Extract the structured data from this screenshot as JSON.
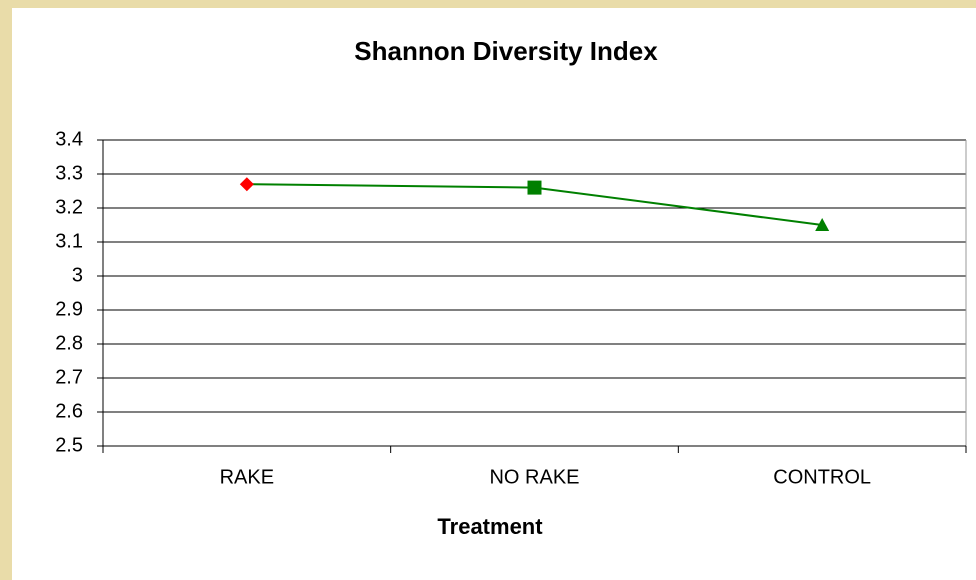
{
  "chart_data": {
    "type": "line",
    "title": "Shannon Diversity Index",
    "x_label": "Treatment",
    "categories": [
      "RAKE",
      "NO RAKE",
      "CONTROL"
    ],
    "series": [
      {
        "color": "#008000",
        "values": [
          3.27,
          3.26,
          3.15
        ],
        "markers": [
          "diamond",
          "square",
          "triangle"
        ],
        "marker_colors": [
          "#ff0000",
          "#008000",
          "#008000"
        ]
      }
    ],
    "ylim": [
      2.5,
      3.4
    ],
    "yticks": [
      2.5,
      2.6,
      2.7,
      2.8,
      2.9,
      3,
      3.1,
      3.2,
      3.3,
      3.4
    ],
    "grid": true
  }
}
